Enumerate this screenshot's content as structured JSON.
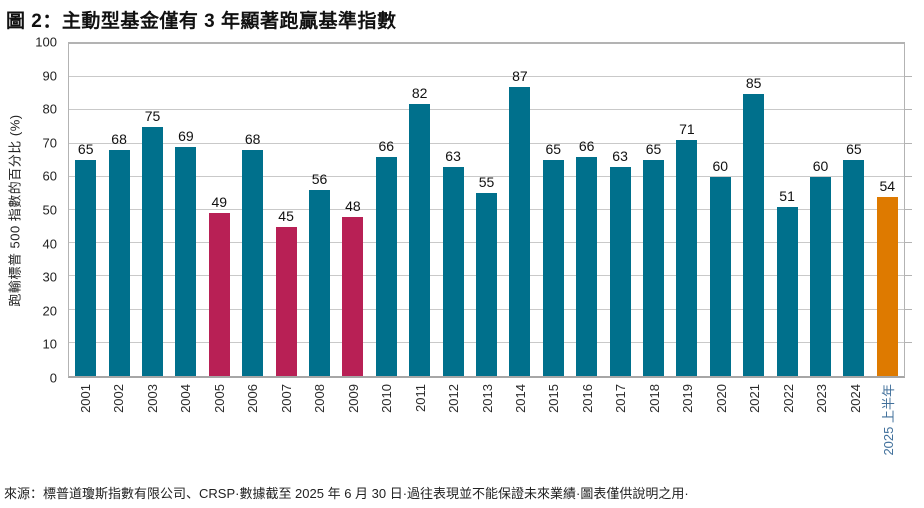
{
  "title": "圖 2：主動型基金僅有 3 年顯著跑贏基準指數",
  "source_note": "來源：標普道瓊斯指數有限公司、CRSP·數據截至 2025 年 6 月 30 日·過往表現並不能保證未來業績·圖表僅供說明之用·",
  "colors": {
    "teal": "#00708C",
    "crimson": "#B82055",
    "orange": "#DE7A00",
    "grid": "#C9C9C9",
    "axis": "#A6A6A6",
    "text": "#111111",
    "highlight_xlabel": "#41709B"
  },
  "chart_data": {
    "type": "bar",
    "title": "圖 2：主動型基金僅有 3 年顯著跑贏基準指數",
    "xlabel": "",
    "ylabel": "跑輸標普 500 指數的百分比 (%)",
    "ylim": [
      0,
      100
    ],
    "ytick_step": 10,
    "grid": true,
    "legend_position": "none",
    "categories": [
      "2001",
      "2002",
      "2003",
      "2004",
      "2005",
      "2006",
      "2007",
      "2008",
      "2009",
      "2010",
      "2011",
      "2012",
      "2013",
      "2014",
      "2015",
      "2016",
      "2017",
      "2018",
      "2019",
      "2020",
      "2021",
      "2022",
      "2023",
      "2024",
      "2025 上半年"
    ],
    "values": [
      65,
      68,
      75,
      69,
      49,
      68,
      45,
      56,
      48,
      66,
      82,
      63,
      55,
      87,
      65,
      66,
      63,
      65,
      71,
      60,
      85,
      51,
      60,
      65,
      54
    ],
    "bar_color_roles": [
      "teal",
      "teal",
      "teal",
      "teal",
      "crimson",
      "teal",
      "crimson",
      "teal",
      "crimson",
      "teal",
      "teal",
      "teal",
      "teal",
      "teal",
      "teal",
      "teal",
      "teal",
      "teal",
      "teal",
      "teal",
      "teal",
      "teal",
      "teal",
      "teal",
      "orange"
    ],
    "highlight_xlabel_index": 24
  }
}
